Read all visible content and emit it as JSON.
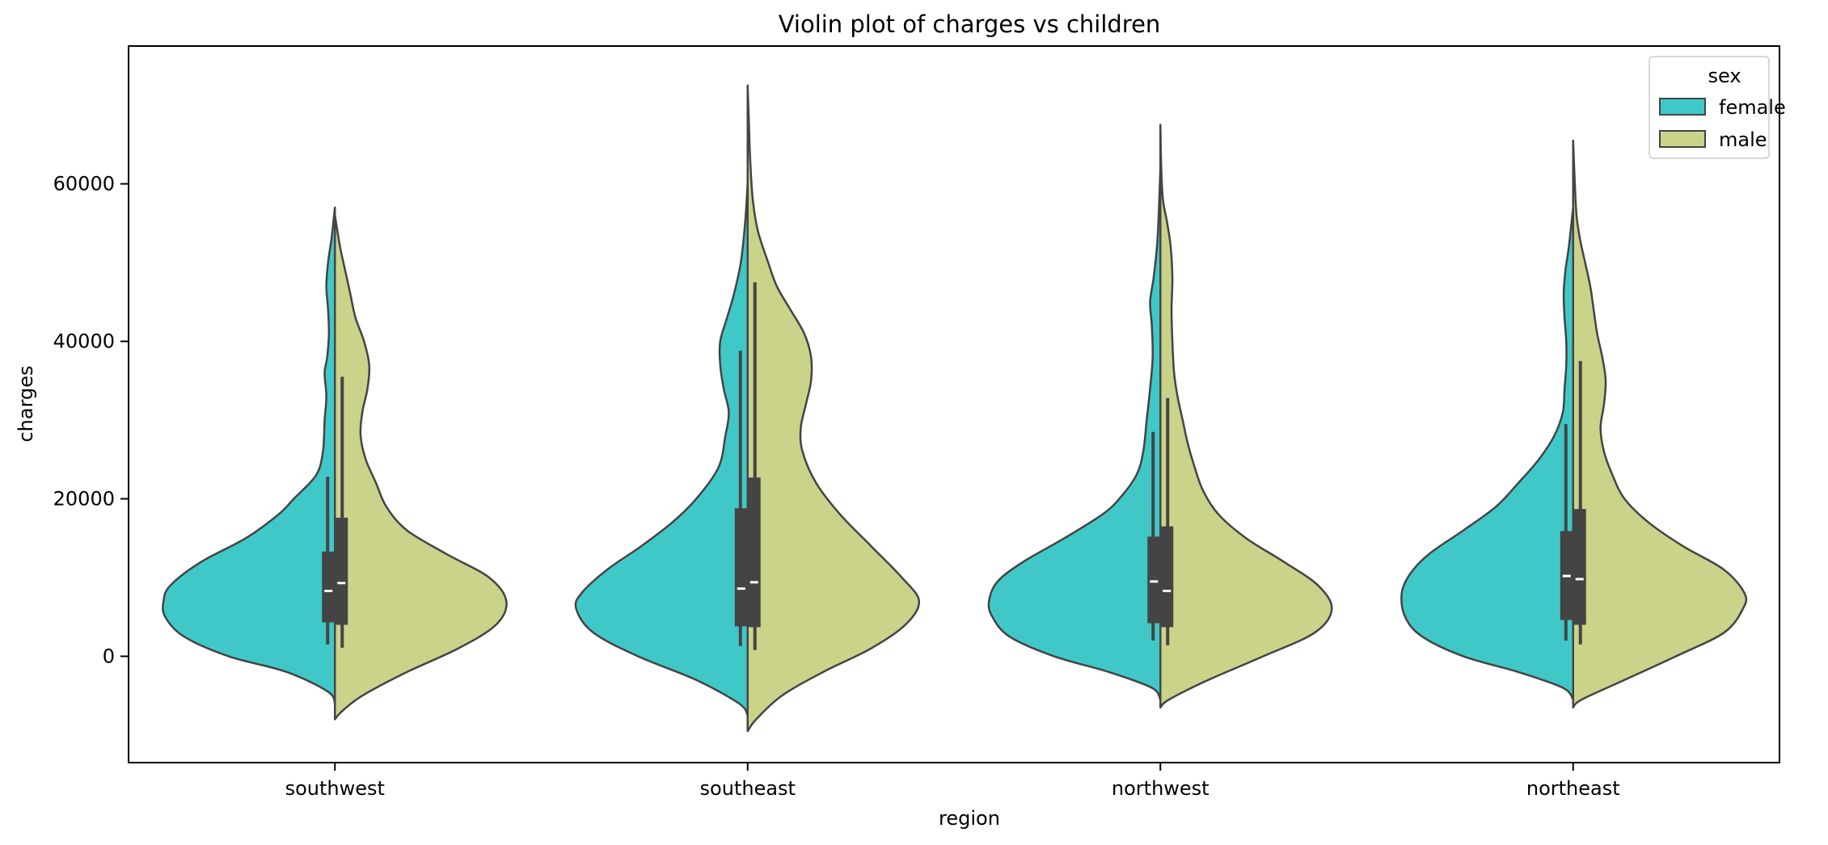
{
  "chart_data": {
    "type": "violin",
    "title": "Violin plot of charges vs children",
    "xlabel": "region",
    "ylabel": "charges",
    "categories": [
      "southwest",
      "southeast",
      "northwest",
      "northeast"
    ],
    "ylim": [
      -13500,
      77500
    ],
    "yticks": [
      0,
      20000,
      40000,
      60000
    ],
    "legend": {
      "title": "sex",
      "position": "top-right",
      "entries": [
        {
          "name": "female",
          "color": "#40c8c8"
        },
        {
          "name": "male",
          "color": "#cbd28a"
        }
      ]
    },
    "series": [
      {
        "name": "female",
        "color": "#40c8c8",
        "groups": [
          {
            "category": "southwest",
            "min": -6000,
            "max": 57000,
            "q1": 4300,
            "median": 8300,
            "q3": 13300,
            "whisker_low": 1500,
            "whisker_high": 22800,
            "profile": [
              [
                -6000,
                0.0
              ],
              [
                -4500,
                0.04
              ],
              [
                -2000,
                0.28
              ],
              [
                0,
                0.62
              ],
              [
                2500,
                0.88
              ],
              [
                5000,
                0.99
              ],
              [
                7000,
                1.0
              ],
              [
                9000,
                0.96
              ],
              [
                12000,
                0.78
              ],
              [
                15000,
                0.52
              ],
              [
                18000,
                0.33
              ],
              [
                20000,
                0.24
              ],
              [
                23000,
                0.11
              ],
              [
                26000,
                0.07
              ],
              [
                30000,
                0.06
              ],
              [
                33000,
                0.05
              ],
              [
                36000,
                0.06
              ],
              [
                38000,
                0.045
              ],
              [
                41000,
                0.035
              ],
              [
                44000,
                0.04
              ],
              [
                47000,
                0.05
              ],
              [
                50000,
                0.04
              ],
              [
                53000,
                0.02
              ],
              [
                55000,
                0.01
              ],
              [
                57000,
                0.0
              ]
            ]
          },
          {
            "category": "southeast",
            "min": -7500,
            "max": 60000,
            "q1": 3800,
            "median": 8600,
            "q3": 18800,
            "whisker_low": 1300,
            "whisker_high": 38800,
            "profile": [
              [
                -7500,
                0.0
              ],
              [
                -6000,
                0.05
              ],
              [
                -3000,
                0.3
              ],
              [
                0,
                0.64
              ],
              [
                3000,
                0.9
              ],
              [
                6000,
                1.0
              ],
              [
                8000,
                0.97
              ],
              [
                11000,
                0.82
              ],
              [
                14000,
                0.62
              ],
              [
                17000,
                0.44
              ],
              [
                20000,
                0.3
              ],
              [
                24000,
                0.17
              ],
              [
                28000,
                0.13
              ],
              [
                31000,
                0.11
              ],
              [
                34000,
                0.14
              ],
              [
                37000,
                0.16
              ],
              [
                40000,
                0.16
              ],
              [
                43000,
                0.12
              ],
              [
                46000,
                0.08
              ],
              [
                50000,
                0.04
              ],
              [
                55000,
                0.015
              ],
              [
                60000,
                0.0
              ]
            ]
          },
          {
            "category": "northwest",
            "min": -5500,
            "max": 62000,
            "q1": 4200,
            "median": 9500,
            "q3": 15200,
            "whisker_low": 2000,
            "whisker_high": 28500,
            "profile": [
              [
                -5500,
                0.0
              ],
              [
                -4000,
                0.05
              ],
              [
                -2000,
                0.3
              ],
              [
                0,
                0.62
              ],
              [
                2500,
                0.88
              ],
              [
                5000,
                0.98
              ],
              [
                7000,
                1.0
              ],
              [
                9500,
                0.95
              ],
              [
                12000,
                0.8
              ],
              [
                15000,
                0.56
              ],
              [
                18000,
                0.34
              ],
              [
                20000,
                0.24
              ],
              [
                23000,
                0.14
              ],
              [
                26000,
                0.1
              ],
              [
                30000,
                0.08
              ],
              [
                34000,
                0.06
              ],
              [
                38000,
                0.045
              ],
              [
                42000,
                0.05
              ],
              [
                45000,
                0.06
              ],
              [
                48000,
                0.04
              ],
              [
                52000,
                0.02
              ],
              [
                56000,
                0.01
              ],
              [
                62000,
                0.0
              ]
            ]
          },
          {
            "category": "northeast",
            "min": -5500,
            "max": 57000,
            "q1": 4600,
            "median": 10200,
            "q3": 15900,
            "whisker_low": 2000,
            "whisker_high": 29500,
            "profile": [
              [
                -5500,
                0.0
              ],
              [
                -4000,
                0.06
              ],
              [
                -2000,
                0.32
              ],
              [
                0,
                0.64
              ],
              [
                2500,
                0.88
              ],
              [
                5000,
                0.98
              ],
              [
                8000,
                1.0
              ],
              [
                10500,
                0.95
              ],
              [
                13000,
                0.84
              ],
              [
                16000,
                0.64
              ],
              [
                19000,
                0.45
              ],
              [
                22000,
                0.32
              ],
              [
                25000,
                0.2
              ],
              [
                28000,
                0.11
              ],
              [
                31000,
                0.06
              ],
              [
                34000,
                0.05
              ],
              [
                37000,
                0.04
              ],
              [
                40000,
                0.04
              ],
              [
                43000,
                0.05
              ],
              [
                46000,
                0.055
              ],
              [
                49000,
                0.045
              ],
              [
                52000,
                0.025
              ],
              [
                57000,
                0.0
              ]
            ]
          }
        ]
      },
      {
        "name": "male",
        "color": "#cbd28a",
        "groups": [
          {
            "category": "southwest",
            "min": -8000,
            "max": 56000,
            "q1": 4000,
            "median": 9300,
            "q3": 17600,
            "whisker_low": 1100,
            "whisker_high": 35500,
            "profile": [
              [
                -8000,
                0.0
              ],
              [
                -7000,
                0.04
              ],
              [
                -5000,
                0.16
              ],
              [
                -2000,
                0.42
              ],
              [
                1000,
                0.72
              ],
              [
                4000,
                0.94
              ],
              [
                7000,
                1.0
              ],
              [
                10000,
                0.9
              ],
              [
                13000,
                0.65
              ],
              [
                16000,
                0.42
              ],
              [
                19000,
                0.3
              ],
              [
                22000,
                0.24
              ],
              [
                25000,
                0.18
              ],
              [
                28000,
                0.15
              ],
              [
                31000,
                0.16
              ],
              [
                34000,
                0.19
              ],
              [
                37000,
                0.2
              ],
              [
                40000,
                0.17
              ],
              [
                43000,
                0.12
              ],
              [
                46000,
                0.09
              ],
              [
                49000,
                0.06
              ],
              [
                52000,
                0.03
              ],
              [
                56000,
                0.0
              ]
            ]
          },
          {
            "category": "southeast",
            "min": -9500,
            "max": 72500,
            "q1": 3700,
            "median": 9400,
            "q3": 22700,
            "whisker_low": 800,
            "whisker_high": 47500,
            "profile": [
              [
                -9500,
                0.0
              ],
              [
                -8000,
                0.05
              ],
              [
                -5000,
                0.2
              ],
              [
                -2000,
                0.44
              ],
              [
                1000,
                0.72
              ],
              [
                4000,
                0.92
              ],
              [
                7000,
                1.0
              ],
              [
                10000,
                0.9
              ],
              [
                14000,
                0.72
              ],
              [
                18000,
                0.54
              ],
              [
                22000,
                0.4
              ],
              [
                26000,
                0.32
              ],
              [
                29000,
                0.31
              ],
              [
                32000,
                0.34
              ],
              [
                35000,
                0.37
              ],
              [
                38000,
                0.37
              ],
              [
                41000,
                0.33
              ],
              [
                44000,
                0.25
              ],
              [
                47000,
                0.17
              ],
              [
                50000,
                0.12
              ],
              [
                54000,
                0.06
              ],
              [
                58000,
                0.03
              ],
              [
                63000,
                0.015
              ],
              [
                68000,
                0.007
              ],
              [
                72500,
                0.0
              ]
            ]
          },
          {
            "category": "northwest",
            "min": -6500,
            "max": 67500,
            "q1": 3700,
            "median": 8300,
            "q3": 16500,
            "whisker_low": 1400,
            "whisker_high": 32800,
            "profile": [
              [
                -6500,
                0.0
              ],
              [
                -5500,
                0.05
              ],
              [
                -3000,
                0.28
              ],
              [
                0,
                0.6
              ],
              [
                3000,
                0.9
              ],
              [
                6000,
                1.0
              ],
              [
                9000,
                0.92
              ],
              [
                12000,
                0.72
              ],
              [
                15000,
                0.5
              ],
              [
                18000,
                0.34
              ],
              [
                21000,
                0.25
              ],
              [
                24000,
                0.2
              ],
              [
                27000,
                0.16
              ],
              [
                30000,
                0.13
              ],
              [
                33000,
                0.1
              ],
              [
                36000,
                0.08
              ],
              [
                40000,
                0.07
              ],
              [
                44000,
                0.065
              ],
              [
                48000,
                0.07
              ],
              [
                52000,
                0.06
              ],
              [
                55000,
                0.04
              ],
              [
                58000,
                0.015
              ],
              [
                62000,
                0.005
              ],
              [
                67500,
                0.0
              ]
            ]
          },
          {
            "category": "northeast",
            "min": -6500,
            "max": 65500,
            "q1": 4000,
            "median": 9800,
            "q3": 18700,
            "whisker_low": 1500,
            "whisker_high": 37500,
            "profile": [
              [
                -6500,
                0.0
              ],
              [
                -5500,
                0.05
              ],
              [
                -3000,
                0.3
              ],
              [
                0,
                0.6
              ],
              [
                3000,
                0.88
              ],
              [
                6000,
                0.99
              ],
              [
                8000,
                1.0
              ],
              [
                11000,
                0.88
              ],
              [
                14000,
                0.64
              ],
              [
                17000,
                0.44
              ],
              [
                20000,
                0.3
              ],
              [
                23000,
                0.23
              ],
              [
                26000,
                0.18
              ],
              [
                29000,
                0.16
              ],
              [
                32000,
                0.18
              ],
              [
                35000,
                0.19
              ],
              [
                38000,
                0.17
              ],
              [
                41000,
                0.14
              ],
              [
                44000,
                0.12
              ],
              [
                47000,
                0.1
              ],
              [
                50000,
                0.07
              ],
              [
                53000,
                0.04
              ],
              [
                56000,
                0.02
              ],
              [
                60000,
                0.01
              ],
              [
                65500,
                0.0
              ]
            ]
          }
        ]
      }
    ]
  }
}
